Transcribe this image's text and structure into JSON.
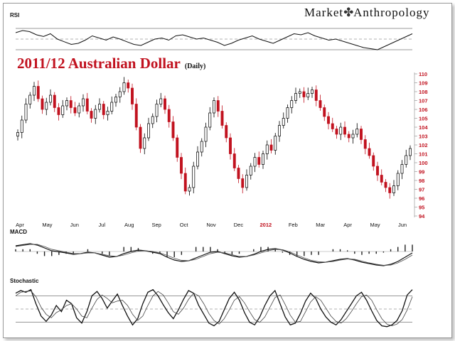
{
  "brand": {
    "left": "Market",
    "right": "Anthropology",
    "logo_icon": "dna-helix-icon"
  },
  "chart_data": [
    {
      "type": "line",
      "panel": "rsi",
      "title": "RSI",
      "grid": true,
      "series": [
        {
          "values": [
            62,
            66,
            64,
            58,
            55,
            60,
            50,
            45,
            40,
            42,
            48,
            56,
            52,
            48,
            54,
            50,
            45,
            40,
            38,
            44,
            50,
            52,
            48,
            56,
            58,
            54,
            50,
            52,
            48,
            44,
            38,
            42,
            48,
            52,
            56,
            50,
            46,
            42,
            48,
            54,
            60,
            58,
            62,
            56,
            52,
            48,
            50,
            46,
            42,
            38,
            34,
            32,
            30,
            36,
            42,
            48,
            54,
            60
          ]
        }
      ]
    },
    {
      "type": "candlestick",
      "panel": "price",
      "title": "2011/12 Australian Dollar",
      "subtitle": "(Daily)",
      "ylim": [
        94,
        110
      ],
      "y_ticks": [
        110,
        109,
        108,
        107,
        106,
        105,
        104,
        103,
        102,
        101,
        100,
        99,
        98,
        97,
        96,
        95,
        94
      ],
      "x_ticks": [
        "Apr",
        "May",
        "Jun",
        "Jul",
        "Aug",
        "Sep",
        "Oct",
        "Nov",
        "Dec",
        "2012",
        "Feb",
        "Mar",
        "Apr",
        "May",
        "Jun"
      ],
      "x_tick_highlight": "2012",
      "up_color": "#000000",
      "down_color": "#c1121f",
      "closes": [
        103.4,
        104.8,
        106.6,
        107.6,
        108.6,
        107.2,
        106.0,
        106.8,
        107.6,
        106.2,
        105.4,
        106.4,
        107.0,
        106.2,
        105.6,
        106.4,
        107.2,
        105.8,
        105.0,
        106.0,
        106.6,
        105.4,
        105.8,
        106.8,
        107.4,
        108.0,
        109.0,
        108.4,
        106.6,
        104.0,
        101.6,
        102.8,
        104.4,
        105.2,
        106.6,
        107.2,
        106.0,
        104.6,
        102.8,
        100.6,
        98.8,
        96.8,
        97.2,
        99.6,
        101.2,
        102.4,
        104.0,
        105.6,
        107.0,
        105.8,
        104.2,
        102.8,
        101.0,
        99.4,
        98.2,
        97.2,
        98.6,
        99.6,
        100.6,
        99.8,
        101.0,
        102.0,
        101.4,
        103.0,
        104.2,
        105.0,
        106.2,
        107.0,
        107.8,
        108.0,
        107.4,
        107.8,
        108.2,
        107.0,
        106.2,
        105.2,
        104.4,
        103.8,
        103.2,
        104.0,
        103.2,
        102.8,
        103.2,
        103.8,
        102.6,
        101.6,
        100.8,
        99.6,
        98.6,
        97.8,
        97.2,
        96.6,
        97.4,
        98.8,
        99.8,
        100.8,
        101.6
      ]
    },
    {
      "type": "line",
      "panel": "macd",
      "title": "MACD",
      "series": [
        {
          "values": [
            0.72,
            0.75,
            0.78,
            0.74,
            0.66,
            0.58,
            0.55,
            0.52,
            0.48,
            0.5,
            0.54,
            0.52,
            0.46,
            0.4,
            0.42,
            0.5,
            0.56,
            0.6,
            0.58,
            0.54,
            0.5,
            0.4,
            0.32,
            0.28,
            0.3,
            0.38,
            0.46,
            0.54,
            0.56,
            0.5,
            0.44,
            0.4,
            0.42,
            0.48,
            0.56,
            0.62,
            0.64,
            0.6,
            0.52,
            0.42,
            0.34,
            0.28,
            0.24,
            0.26,
            0.3,
            0.34,
            0.36,
            0.32,
            0.26,
            0.22,
            0.18,
            0.16,
            0.2,
            0.28,
            0.4,
            0.52
          ]
        },
        {
          "values": [
            0.7,
            0.73,
            0.76,
            0.76,
            0.7,
            0.62,
            0.58,
            0.54,
            0.5,
            0.5,
            0.52,
            0.52,
            0.48,
            0.44,
            0.42,
            0.46,
            0.52,
            0.57,
            0.58,
            0.56,
            0.52,
            0.45,
            0.37,
            0.31,
            0.3,
            0.34,
            0.42,
            0.5,
            0.54,
            0.52,
            0.47,
            0.42,
            0.42,
            0.46,
            0.52,
            0.58,
            0.62,
            0.61,
            0.55,
            0.46,
            0.38,
            0.31,
            0.27,
            0.26,
            0.28,
            0.32,
            0.35,
            0.34,
            0.29,
            0.24,
            0.2,
            0.17,
            0.18,
            0.24,
            0.34,
            0.46
          ]
        }
      ]
    },
    {
      "type": "line",
      "panel": "stochastic",
      "title": "Stochastic",
      "series": [
        {
          "values": [
            86,
            92,
            88,
            94,
            62,
            34,
            22,
            36,
            58,
            44,
            70,
            62,
            30,
            18,
            44,
            80,
            90,
            74,
            52,
            68,
            84,
            58,
            34,
            14,
            28,
            62,
            88,
            94,
            80,
            60,
            42,
            28,
            48,
            72,
            92,
            86,
            58,
            38,
            18,
            12,
            22,
            48,
            74,
            88,
            70,
            42,
            20,
            14,
            32,
            58,
            80,
            92,
            62,
            32,
            14,
            18,
            40,
            68,
            86,
            74,
            50,
            32,
            20,
            14,
            26,
            44,
            62,
            80,
            88,
            70,
            46,
            24,
            12,
            10,
            14,
            24,
            46,
            82,
            94
          ]
        },
        {
          "values": [
            80,
            88,
            90,
            91,
            78,
            54,
            38,
            30,
            42,
            48,
            58,
            62,
            50,
            34,
            30,
            52,
            72,
            82,
            74,
            64,
            68,
            70,
            58,
            38,
            24,
            34,
            58,
            80,
            90,
            82,
            64,
            44,
            38,
            52,
            72,
            86,
            80,
            62,
            40,
            24,
            16,
            28,
            48,
            70,
            78,
            64,
            44,
            26,
            20,
            32,
            54,
            76,
            82,
            60,
            36,
            20,
            22,
            44,
            66,
            78,
            70,
            52,
            34,
            22,
            18,
            28,
            44,
            62,
            78,
            82,
            70,
            48,
            28,
            16,
            12,
            16,
            26,
            48,
            78
          ]
        }
      ]
    }
  ]
}
